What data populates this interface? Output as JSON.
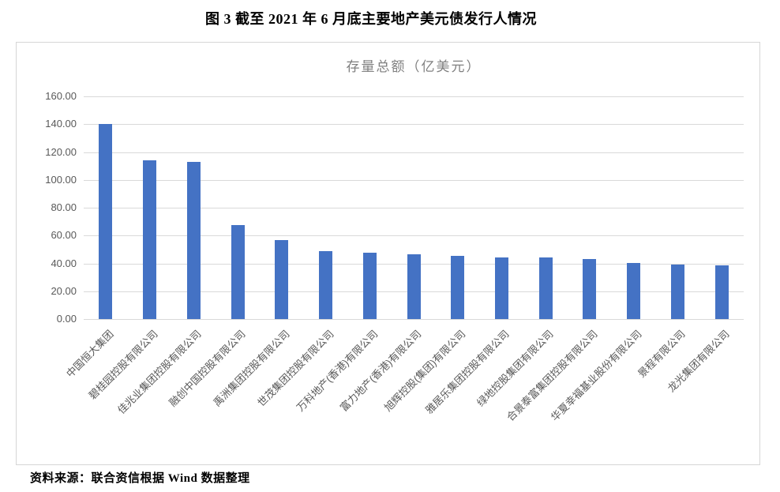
{
  "page": {
    "figure_title": "图 3  截至 2021 年 6 月底主要地产美元债发行人情况",
    "source_note": "资料来源：联合资信根据 Wind 数据整理"
  },
  "colors": {
    "bar": "#4472c4",
    "gridline": "#d9d9d9",
    "axis_text": "#595959",
    "chart_title_text": "#7f7f7f",
    "chart_border": "#d6d6d6"
  },
  "chart_data": {
    "type": "bar",
    "title": "存量总额（亿美元）",
    "categories": [
      "中国恒大集团",
      "碧桂园控股有限公司",
      "佳兆业集团控股有限公司",
      "融创中国控股有限公司",
      "禹洲集团控股有限公司",
      "世茂集团控股有限公司",
      "万科地产(香港)有限公司",
      "富力地产(香港)有限公司",
      "旭辉控股(集团)有限公司",
      "雅居乐集团控股有限公司",
      "绿地控股集团有限公司",
      "合景泰富集团控股有限公司",
      "华夏幸福基业股份有限公司",
      "景程有限公司",
      "龙光集团有限公司"
    ],
    "values": [
      140.2,
      113.9,
      112.8,
      67.8,
      56.6,
      48.9,
      47.9,
      46.7,
      45.4,
      44.4,
      44.2,
      43.4,
      40.4,
      39.0,
      38.5
    ],
    "xlabel": "",
    "ylabel": "",
    "ylim": [
      0,
      160
    ],
    "yticks": [
      "0.00",
      "20.00",
      "40.00",
      "60.00",
      "80.00",
      "100.00",
      "120.00",
      "140.00",
      "160.00"
    ],
    "grid": true,
    "legend": false,
    "bar_color": "#4472c4",
    "x_tick_rotation": 45
  }
}
